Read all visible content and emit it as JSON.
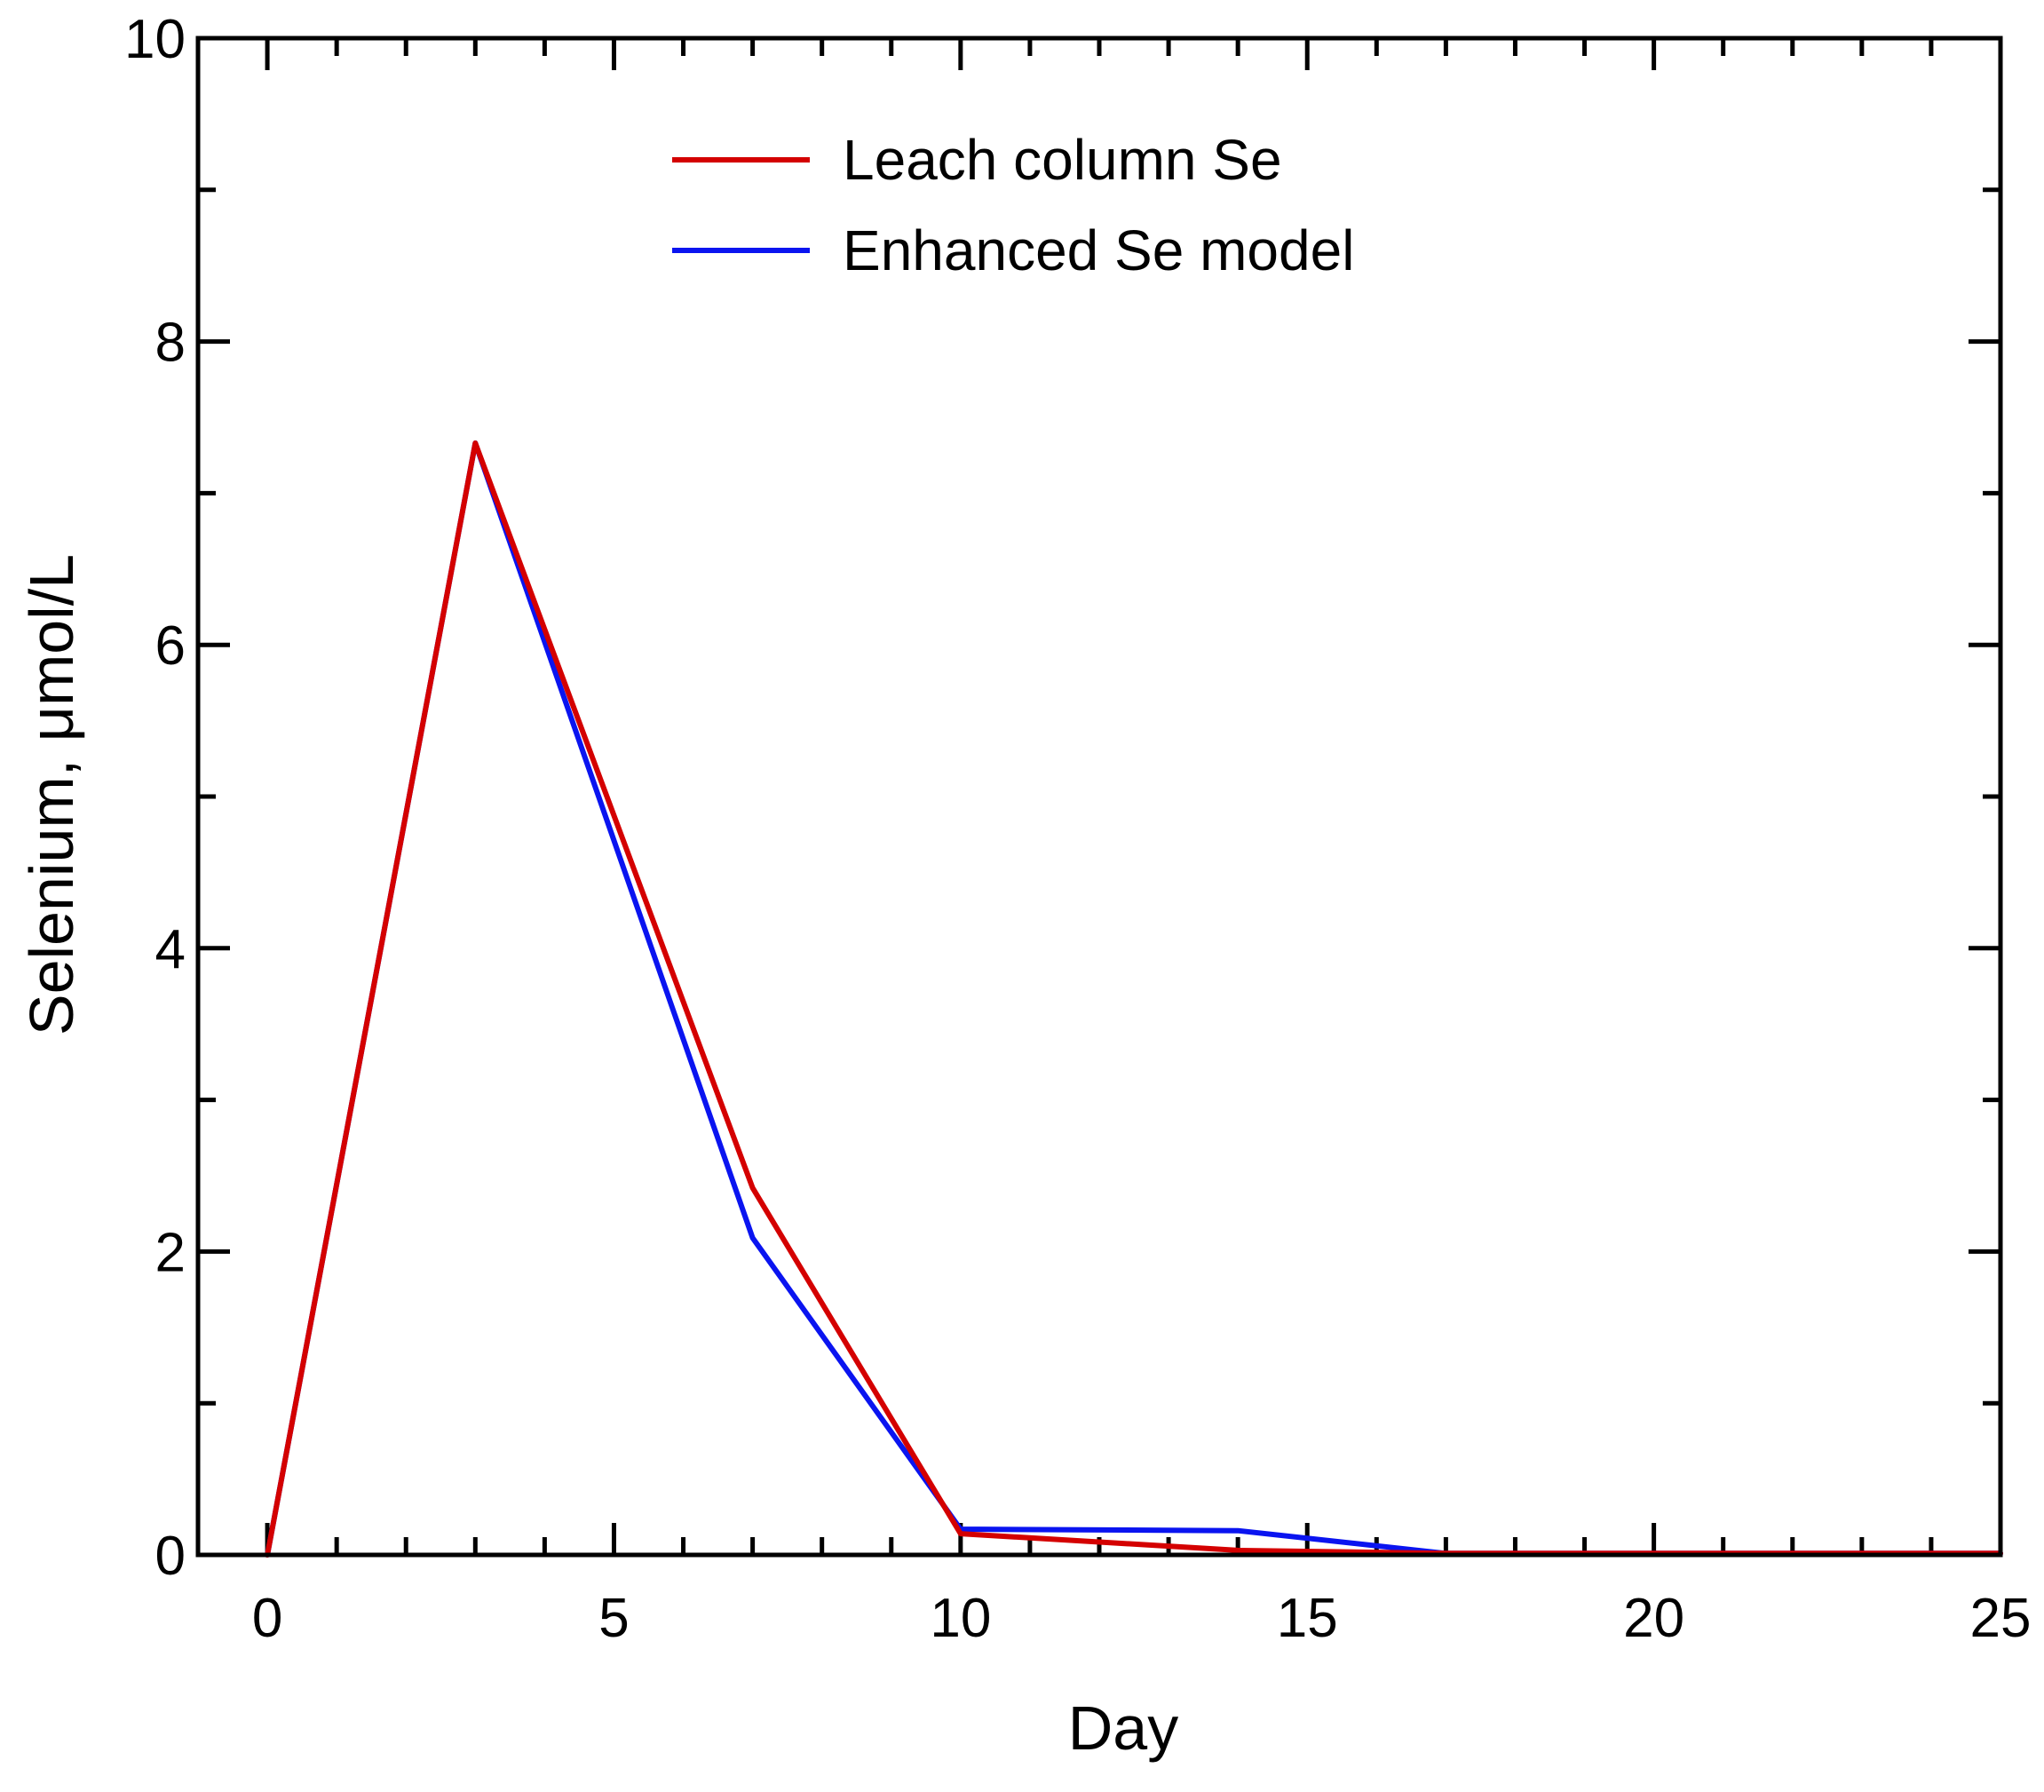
{
  "chart_data": {
    "type": "line",
    "title": "",
    "xlabel": "Day",
    "ylabel": "Selenium, μmol/L",
    "xlim": [
      -1,
      25
    ],
    "ylim": [
      0,
      10
    ],
    "xticks": [
      0,
      5,
      10,
      15,
      20,
      25
    ],
    "xtick_labels": [
      "0",
      "5",
      "10",
      "15",
      "20",
      "25"
    ],
    "xminor_ticks": [
      -1,
      0,
      1,
      2,
      3,
      4,
      5,
      6,
      7,
      8,
      9,
      10,
      11,
      12,
      13,
      14,
      15,
      16,
      17,
      18,
      19,
      20,
      21,
      22,
      23,
      24,
      25
    ],
    "yticks": [
      0,
      2,
      4,
      6,
      8,
      10
    ],
    "ytick_labels": [
      "0",
      "2",
      "4",
      "6",
      "8",
      "10"
    ],
    "yminor_ticks": [
      0,
      1,
      2,
      3,
      4,
      5,
      6,
      7,
      8,
      9,
      10
    ],
    "grid": false,
    "legend_position": "top-center",
    "series": [
      {
        "name": "Leach column Se",
        "color": "#d40000",
        "x": [
          0,
          3,
          7,
          10,
          14,
          17,
          25
        ],
        "y": [
          0,
          7.33,
          2.42,
          0.14,
          0.03,
          0.01,
          0.01
        ]
      },
      {
        "name": "Enhanced Se model",
        "color": "#0a14f0",
        "x": [
          0,
          3,
          7,
          10,
          14,
          17,
          25
        ],
        "y": [
          0,
          7.33,
          2.09,
          0.17,
          0.16,
          0.01,
          0.01
        ]
      }
    ]
  }
}
